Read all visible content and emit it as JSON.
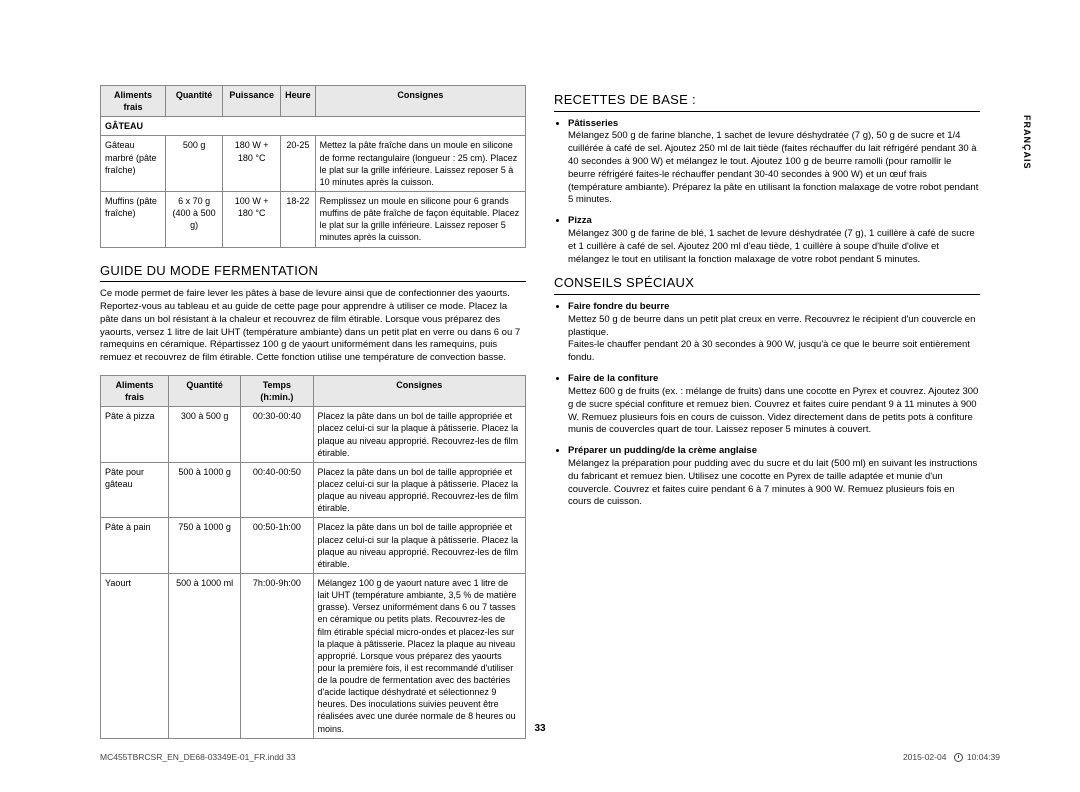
{
  "lang_tab": "FRANÇAIS",
  "page_number": "33",
  "footer_left": "MC455TBRCSR_EN_DE68-03349E-01_FR.indd   33",
  "footer_date": "2015-02-04",
  "footer_time": "10:04:39",
  "table1": {
    "headers": [
      "Aliments frais",
      "Quantité",
      "Puissance",
      "Heure",
      "Consignes"
    ],
    "section": "GÂTEAU",
    "rows": [
      {
        "food": "Gâteau marbré (pâte fraîche)",
        "qty": "500 g",
        "power": "180 W + 180 °C",
        "time": "20-25",
        "instr": "Mettez la pâte fraîche dans un moule en silicone de forme rectangulaire (longueur : 25 cm). Placez le plat sur la grille inférieure. Laissez reposer 5 à 10 minutes après la cuisson."
      },
      {
        "food": "Muffins (pâte fraîche)",
        "qty": "6 x 70 g (400 à 500 g)",
        "power": "100 W + 180 °C",
        "time": "18-22",
        "instr": "Remplissez un moule en silicone pour 6 grands muffins de pâte fraîche de façon équitable. Placez le plat sur la grille inférieure. Laissez reposer 5 minutes après la cuisson."
      }
    ]
  },
  "fermentation": {
    "title": "GUIDE DU MODE FERMENTATION",
    "intro": "Ce mode permet de faire lever les pâtes à base de levure ainsi que de confectionner des yaourts. Reportez-vous au tableau et au guide de cette page pour apprendre à utiliser ce mode. Placez la pâte dans un bol résistant à la chaleur et recouvrez de film étirable. Lorsque vous préparez des yaourts, versez 1 litre de lait UHT (température ambiante) dans un petit plat en verre ou dans 6 ou 7 ramequins en céramique. Répartissez 100 g de yaourt uniformément dans les ramequins, puis remuez et recouvrez de film étirable. Cette fonction utilise une température de convection basse."
  },
  "table2": {
    "headers": [
      "Aliments frais",
      "Quantité",
      "Temps (h:min.)",
      "Consignes"
    ],
    "rows": [
      {
        "food": "Pâte à pizza",
        "qty": "300 à 500 g",
        "time": "00:30-00:40",
        "instr": "Placez la pâte dans un bol de taille appropriée et placez celui-ci sur la plaque à pâtisserie. Placez la plaque au niveau approprié. Recouvrez-les de film étirable."
      },
      {
        "food": "Pâte pour gâteau",
        "qty": "500 à 1000 g",
        "time": "00:40-00:50",
        "instr": "Placez la pâte dans un bol de taille appropriée et placez celui-ci sur la plaque à pâtisserie. Placez la plaque au niveau approprié. Recouvrez-les de film étirable."
      },
      {
        "food": "Pâte à pain",
        "qty": "750 à 1000 g",
        "time": "00:50-1h:00",
        "instr": "Placez la pâte dans un bol de taille appropriée et placez celui-ci sur la plaque à pâtisserie. Placez la plaque au niveau approprié. Recouvrez-les de film étirable."
      },
      {
        "food": "Yaourt",
        "qty": "500 à 1000 ml",
        "time": "7h:00-9h:00",
        "instr": "Mélangez 100 g de yaourt nature avec 1 litre de lait UHT (température ambiante, 3,5 % de matière grasse). Versez uniformément dans 6 ou 7 tasses en céramique ou petits plats. Recouvrez-les de film étirable spécial micro-ondes et placez-les sur la plaque à pâtisserie. Placez la plaque au niveau approprié. Lorsque vous préparez des yaourts pour la première fois, il est recommandé d'utiliser de la poudre de fermentation avec des bactéries d'acide lactique déshydraté et sélectionnez 9 heures. Des inoculations suivies peuvent être réalisées avec une durée normale de 8 heures ou moins."
      }
    ]
  },
  "recipes": {
    "title": "RECETTES DE BASE :",
    "items": [
      {
        "name": "Pâtisseries",
        "text": "Mélangez 500 g de farine blanche, 1 sachet de levure déshydratée (7 g), 50 g de sucre et 1/4 cuillérée à café de sel. Ajoutez 250 ml de lait tiède (faites réchauffer du lait réfrigéré pendant 30 à 40 secondes à 900 W) et mélangez le tout. Ajoutez 100 g de beurre ramolli (pour ramollir le beurre réfrigéré faites-le réchauffer pendant 30-40 secondes à 900 W) et un œuf frais (température ambiante). Préparez la pâte en utilisant la fonction malaxage de votre robot pendant 5 minutes."
      },
      {
        "name": "Pizza",
        "text": "Mélangez 300 g de farine de blé, 1 sachet de levure déshydratée (7 g), 1 cuillère à café de sucre et 1 cuillère à café de sel. Ajoutez 200 ml d'eau tiède, 1 cuillère à soupe d'huile d'olive et mélangez le tout en utilisant la fonction malaxage de votre robot pendant 5 minutes."
      }
    ]
  },
  "tips": {
    "title": "CONSEILS SPÉCIAUX",
    "items": [
      {
        "name": "Faire fondre du beurre",
        "lines": [
          "Mettez 50 g de beurre dans un petit plat creux en verre. Recouvrez le récipient d'un couvercle en plastique.",
          "Faites-le chauffer pendant 20 à 30 secondes à 900 W, jusqu'à ce que le beurre soit entièrement fondu."
        ]
      },
      {
        "name": "Faire de la confiture",
        "lines": [
          "Mettez 600 g de fruits (ex. : mélange de fruits) dans une cocotte en Pyrex et couvrez. Ajoutez 300 g de sucre spécial confiture et remuez bien. Couvrez et faites cuire pendant 9 à 11 minutes à 900 W. Remuez plusieurs fois en cours de cuisson. Videz directement dans de petits pots à confiture munis de couvercles quart de tour. Laissez reposer 5 minutes à couvert."
        ]
      },
      {
        "name": "Préparer un pudding/de la crème anglaise",
        "lines": [
          "Mélangez la préparation pour pudding avec du sucre et du lait (500 ml) en suivant les instructions du fabricant et remuez bien. Utilisez une cocotte en Pyrex de taille adaptée et munie d'un couvercle. Couvrez et faites cuire pendant 6 à 7 minutes à 900 W. Remuez plusieurs fois en cours de cuisson."
        ]
      }
    ]
  }
}
